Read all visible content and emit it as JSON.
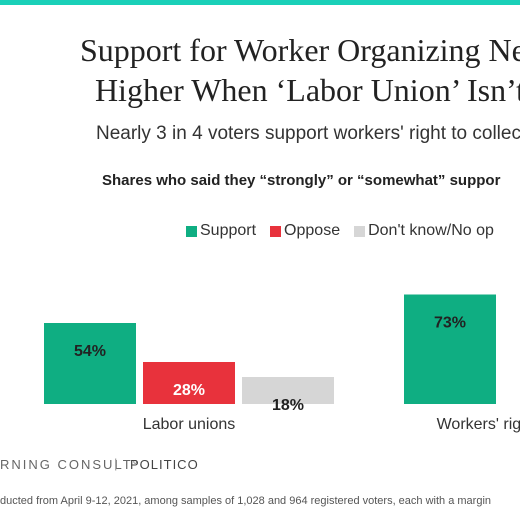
{
  "accent_color": "#1ad0b8",
  "chart_data": {
    "type": "bar",
    "title": "Support for Worker Organizing Nea\nHigher When ‘Labor Union’ Isn’t",
    "subtitle": "Nearly 3 in 4 voters support workers' right to collec",
    "question": "Shares who said they “strongly” or “somewhat” suppor",
    "categories": [
      "Labor unions",
      "Workers' right t"
    ],
    "series": [
      {
        "name": "Support",
        "color": "#0fae82",
        "values": [
          54,
          73
        ],
        "labels": [
          "54%",
          "73%"
        ]
      },
      {
        "name": "Oppose",
        "color": "#e8323c",
        "values": [
          28,
          null
        ],
        "labels": [
          "28%",
          ""
        ]
      },
      {
        "name": "Don't know/No op",
        "color": "#d6d6d6",
        "values": [
          18,
          null
        ],
        "labels": [
          "18%",
          ""
        ]
      }
    ],
    "ylim": [
      0,
      100
    ],
    "grid": false,
    "legend": "top"
  },
  "footer": {
    "source": "RNING CONSULT°",
    "separator": "|",
    "publisher": "POLITICO",
    "methodology": "ducted from April 9-12, 2021, among samples of 1,028 and 964 registered voters, each with a margin"
  }
}
